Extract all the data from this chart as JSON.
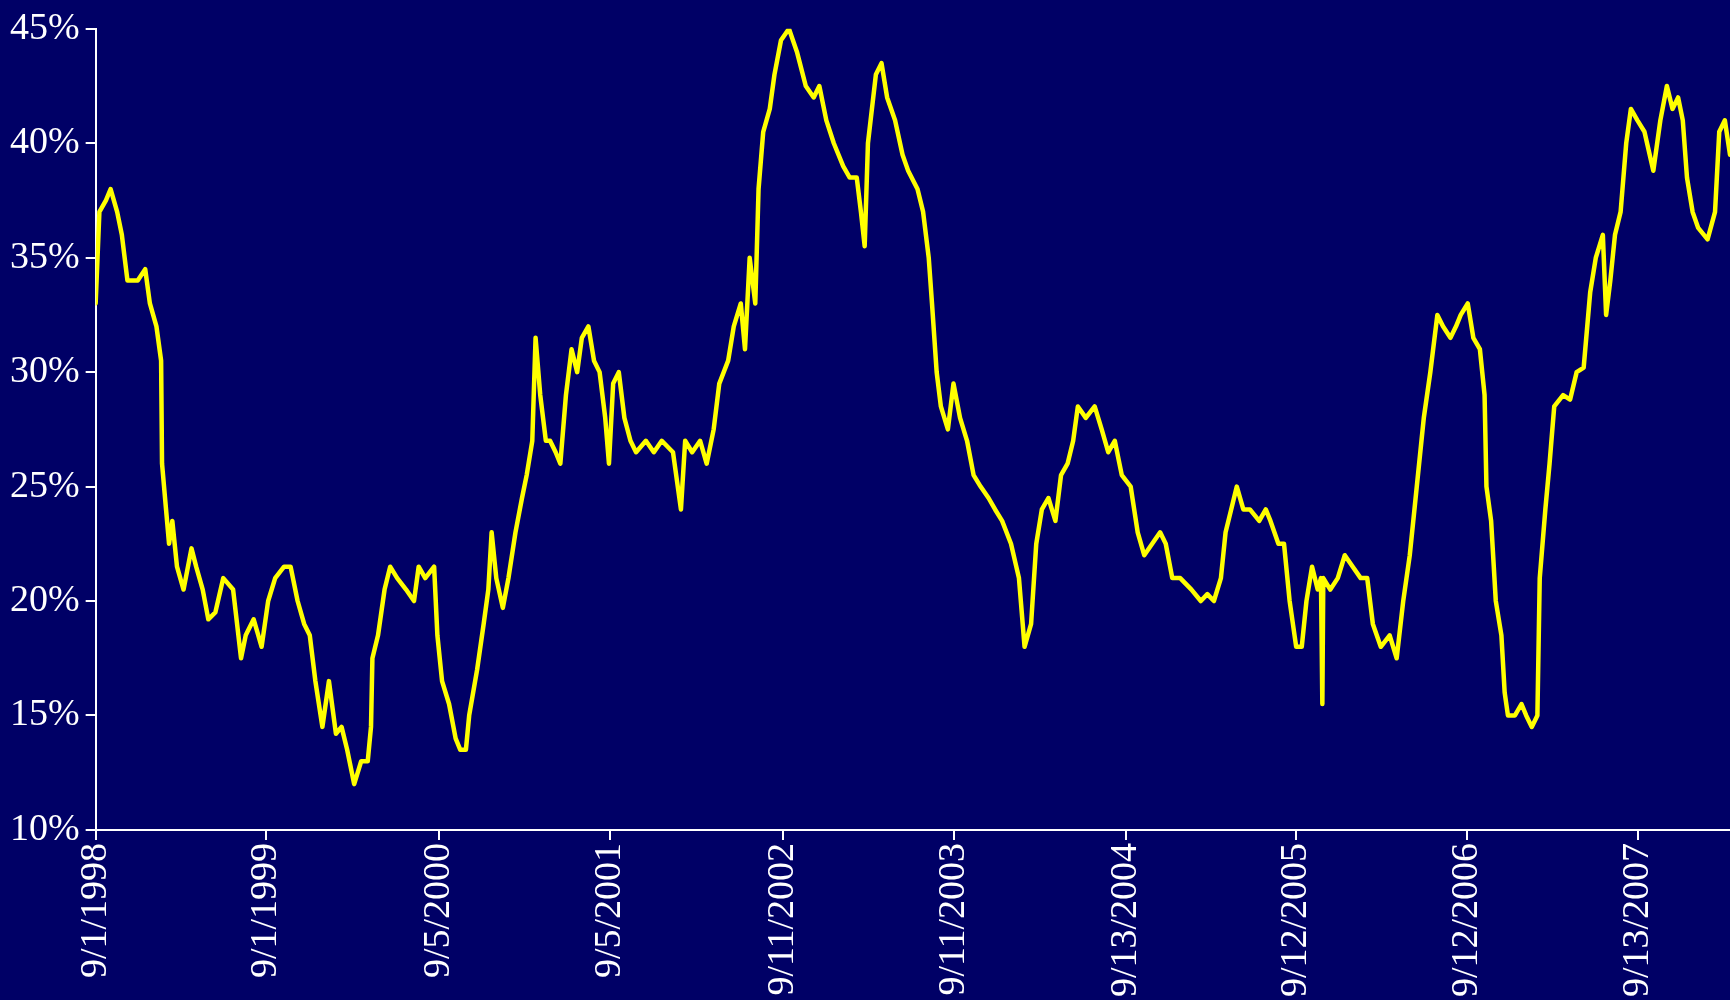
{
  "chart_data": {
    "type": "line",
    "color": "#ffff00",
    "x": [
      "1998-09-01",
      "1998-09-09",
      "1998-09-23",
      "1998-10-03",
      "1998-10-17",
      "1998-10-27",
      "1998-11-08",
      "1998-11-30",
      "1998-12-16",
      "1998-12-26",
      "1999-01-09",
      "1999-01-19",
      "1999-01-21",
      "1999-02-05",
      "1999-02-12",
      "1999-02-22",
      "1999-03-08",
      "1999-03-25",
      "1999-04-04",
      "1999-04-18",
      "1999-04-30",
      "1999-05-15",
      "1999-06-01",
      "1999-06-22",
      "1999-07-09",
      "1999-07-19",
      "1999-08-05",
      "1999-08-22",
      "1999-09-05",
      "1999-09-20",
      "1999-10-09",
      "1999-10-23",
      "1999-11-07",
      "1999-11-21",
      "1999-12-03",
      "1999-12-15",
      "1999-12-30",
      "2000-01-13",
      "2000-01-28",
      "2000-02-09",
      "2000-02-21",
      "2000-03-07",
      "2000-03-22",
      "2000-04-05",
      "2000-04-12",
      "2000-04-15",
      "2000-04-27",
      "2000-05-11",
      "2000-05-23",
      "2000-06-07",
      "2000-06-26",
      "2000-07-13",
      "2000-07-23",
      "2000-08-06",
      "2000-08-25",
      "2000-09-01",
      "2000-09-11",
      "2000-09-26",
      "2000-10-10",
      "2000-10-20",
      "2000-11-01",
      "2000-11-08",
      "2000-11-25",
      "2000-12-09",
      "2000-12-19",
      "2000-12-26",
      "2001-01-05",
      "2001-01-19",
      "2001-01-31",
      "2001-02-15",
      "2001-03-01",
      "2001-03-11",
      "2001-03-23",
      "2001-03-30",
      "2001-04-09",
      "2001-04-21",
      "2001-04-30",
      "2001-05-12",
      "2001-05-22",
      "2001-06-03",
      "2001-06-15",
      "2001-06-27",
      "2001-07-07",
      "2001-07-21",
      "2001-08-02",
      "2001-08-14",
      "2001-08-26",
      "2001-09-03",
      "2001-09-12",
      "2001-09-24",
      "2001-10-06",
      "2001-10-19",
      "2001-10-31",
      "2001-11-21",
      "2001-12-08",
      "2001-12-25",
      "2002-01-18",
      "2002-02-04",
      "2002-02-13",
      "2002-02-28",
      "2002-03-17",
      "2002-03-31",
      "2002-04-15",
      "2002-04-27",
      "2002-05-16",
      "2002-05-28",
      "2002-06-12",
      "2002-06-21",
      "2002-07-01",
      "2002-07-13",
      "2002-07-20",
      "2002-07-30",
      "2002-08-13",
      "2002-08-23",
      "2002-09-06",
      "2002-09-23",
      "2002-10-10",
      "2002-10-29",
      "2002-11-15",
      "2002-11-27",
      "2002-12-12",
      "2002-12-28",
      "2003-01-17",
      "2003-01-31",
      "2003-02-15",
      "2003-02-24",
      "2003-03-04",
      "2003-03-11",
      "2003-03-28",
      "2003-04-09",
      "2003-04-21",
      "2003-05-08",
      "2003-05-24",
      "2003-06-05",
      "2003-06-25",
      "2003-07-07",
      "2003-07-19",
      "2003-07-26",
      "2003-08-05",
      "2003-08-14",
      "2003-08-29",
      "2003-09-10",
      "2003-09-24",
      "2003-10-09",
      "2003-10-23",
      "2003-11-07",
      "2003-11-24",
      "2003-12-08",
      "2003-12-23",
      "2004-01-11",
      "2004-01-28",
      "2004-02-09",
      "2004-02-23",
      "2004-03-05",
      "2004-03-17",
      "2004-03-31",
      "2004-04-15",
      "2004-04-27",
      "2004-05-11",
      "2004-05-23",
      "2004-06-02",
      "2004-06-19",
      "2004-07-08",
      "2004-07-23",
      "2004-08-06",
      "2004-08-20",
      "2004-09-04",
      "2004-09-23",
      "2004-10-08",
      "2004-10-22",
      "2004-11-08",
      "2004-11-25",
      "2004-12-07",
      "2004-12-21",
      "2005-01-07",
      "2005-01-31",
      "2005-02-20",
      "2005-03-06",
      "2005-03-20",
      "2005-04-04",
      "2005-04-14",
      "2005-04-26",
      "2005-05-08",
      "2005-05-22",
      "2005-06-05",
      "2005-06-25",
      "2005-07-09",
      "2005-07-19",
      "2005-08-05",
      "2005-08-17",
      "2005-08-29",
      "2005-09-12",
      "2005-09-24",
      "2005-10-04",
      "2005-10-16",
      "2005-10-28",
      "2005-11-04",
      "2005-11-07",
      "2005-11-09",
      "2005-11-24",
      "2005-12-10",
      "2005-12-25",
      "2006-01-11",
      "2006-01-28",
      "2006-02-11",
      "2006-02-23",
      "2006-03-12",
      "2006-03-31",
      "2006-04-15",
      "2006-04-29",
      "2006-05-13",
      "2006-05-28",
      "2006-06-12",
      "2006-06-26",
      "2006-07-11",
      "2006-07-23",
      "2006-08-08",
      "2006-08-20",
      "2006-08-30",
      "2006-09-14",
      "2006-09-26",
      "2006-10-10",
      "2006-10-20",
      "2006-10-24",
      "2006-11-03",
      "2006-11-13",
      "2006-11-25",
      "2006-12-02",
      "2006-12-09",
      "2006-12-24",
      "2007-01-07",
      "2007-01-17",
      "2007-01-29",
      "2007-02-10",
      "2007-02-15",
      "2007-02-27",
      "2007-03-08",
      "2007-03-18",
      "2007-04-06",
      "2007-04-21",
      "2007-05-05",
      "2007-05-20",
      "2007-06-03",
      "2007-06-15",
      "2007-06-30",
      "2007-07-07",
      "2007-07-16",
      "2007-07-26",
      "2007-08-07",
      "2007-08-19",
      "2007-08-29",
      "2007-09-12",
      "2007-09-27",
      "2007-10-16",
      "2007-10-31",
      "2007-11-14",
      "2007-11-26",
      "2007-12-08",
      "2007-12-18",
      "2007-12-27",
      "2008-01-08",
      "2008-01-20",
      "2008-02-09",
      "2008-02-25",
      "2008-03-05",
      "2008-03-17",
      "2008-03-28"
    ],
    "values": [
      33,
      37,
      37.5,
      38,
      37,
      36,
      34,
      34,
      34.5,
      33,
      32,
      30.5,
      26,
      22.5,
      23.5,
      21.5,
      20.5,
      22.3,
      21.5,
      20.5,
      19.2,
      19.5,
      21,
      20.5,
      17.5,
      18.5,
      19.2,
      18,
      20,
      21,
      21.5,
      21.5,
      20,
      19,
      18.5,
      16.5,
      14.5,
      16.5,
      14.2,
      14.5,
      13.5,
      12,
      13,
      13,
      14.5,
      17.5,
      18.5,
      20.5,
      21.5,
      21,
      20.5,
      20,
      21.5,
      21,
      21.5,
      18.5,
      16.5,
      15.5,
      14,
      13.5,
      13.5,
      15,
      17,
      19,
      20.5,
      23,
      21,
      19.7,
      21,
      23,
      24.5,
      25.5,
      27,
      31.5,
      29,
      27,
      27,
      26.5,
      26,
      29,
      31,
      30,
      31.5,
      32,
      30.5,
      30,
      28,
      26,
      29.5,
      30,
      28,
      27,
      26.5,
      27,
      26.5,
      27,
      26.5,
      24,
      27,
      26.5,
      27,
      26,
      27.5,
      29.5,
      30.5,
      32,
      33,
      31,
      35,
      33,
      38,
      40.5,
      41.5,
      43,
      44.5,
      45,
      44,
      42.5,
      42,
      42.5,
      41,
      40,
      39,
      38.5,
      38.5,
      37,
      35.5,
      40,
      43,
      43.5,
      42,
      41,
      39.5,
      38.8,
      38,
      37,
      35,
      33,
      30,
      28.5,
      27.5,
      29.5,
      28,
      27,
      25.5,
      25,
      24.5,
      24,
      23.5,
      22.5,
      21,
      18,
      19,
      22.5,
      24,
      24.5,
      23.5,
      25.5,
      26,
      27,
      28.5,
      28,
      28.5,
      27.5,
      26.5,
      27,
      25.5,
      25,
      23,
      22,
      22.5,
      23,
      22.5,
      21,
      21,
      20.5,
      20,
      20.3,
      20,
      21,
      23,
      24,
      25,
      24,
      24,
      23.5,
      24,
      23.5,
      22.5,
      22.5,
      20,
      18,
      18,
      20,
      21.5,
      20.5,
      21,
      15.5,
      21,
      20.5,
      21,
      22,
      21.5,
      21,
      21,
      19,
      18,
      18.5,
      17.5,
      20,
      22,
      25,
      28,
      30,
      32.5,
      32,
      31.5,
      32,
      32.5,
      33,
      31.5,
      31,
      29,
      25,
      23.5,
      20,
      18.5,
      16,
      15,
      15,
      15.5,
      15,
      14.5,
      15,
      21,
      24,
      26,
      28.5,
      29,
      28.8,
      30,
      30.2,
      33.5,
      35,
      36,
      32.5,
      34,
      36,
      37,
      40,
      41.5,
      41,
      40.5,
      38.8,
      41,
      42.5,
      41.5,
      42,
      41,
      38.5,
      37,
      36.3,
      35.8,
      37,
      40.5,
      41,
      39.5
    ],
    "xlim": [
      "1998-09-01",
      "2008-03-28"
    ],
    "xticks": [
      {
        "value": "1998-09-01",
        "label": "9/1/1998"
      },
      {
        "value": "1999-09-01",
        "label": "9/1/1999"
      },
      {
        "value": "2000-09-05",
        "label": "9/5/2000"
      },
      {
        "value": "2001-09-05",
        "label": "9/5/2001"
      },
      {
        "value": "2002-09-11",
        "label": "9/11/2002"
      },
      {
        "value": "2003-09-11",
        "label": "9/11/2003"
      },
      {
        "value": "2004-09-13",
        "label": "9/13/2004"
      },
      {
        "value": "2005-09-12",
        "label": "9/12/2005"
      },
      {
        "value": "2006-09-12",
        "label": "9/12/2006"
      },
      {
        "value": "2007-09-13",
        "label": "9/13/2007"
      }
    ],
    "ylim": [
      10,
      45
    ],
    "yticks": [
      {
        "value": 10,
        "label": "10%"
      },
      {
        "value": 15,
        "label": "15%"
      },
      {
        "value": 20,
        "label": "20%"
      },
      {
        "value": 25,
        "label": "25%"
      },
      {
        "value": 30,
        "label": "30%"
      },
      {
        "value": 35,
        "label": "35%"
      },
      {
        "value": 40,
        "label": "40%"
      },
      {
        "value": 45,
        "label": "45%"
      }
    ]
  }
}
